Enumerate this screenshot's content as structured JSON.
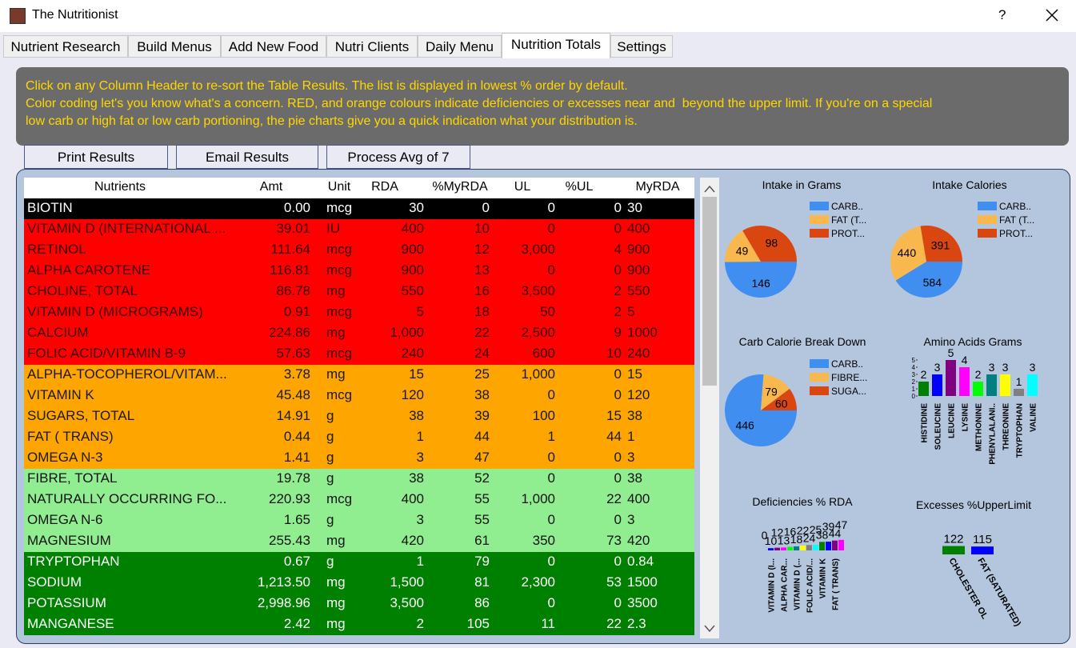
{
  "window": {
    "title": "The Nutritionist",
    "help": "?"
  },
  "tabs": {
    "items": [
      "Nutrient Research",
      "Build Menus",
      "Add New Food",
      "Nutri Clients",
      "Daily Menu",
      "Nutrition Totals",
      "Settings"
    ],
    "active": 5
  },
  "info": [
    "Click on any Column Header to re-sort the Table Results. The list is displayed in lowest % order by default.",
    "Color coding let's you know what's a concern. RED, and orange colours indicate deficiencies or excesses near and  beyond the upper limit. If you're on a special",
    "low carb or high fat or low carb portioning, the pie charts give you a quick indication what your distribution is."
  ],
  "buttons": [
    "Print Results",
    "Email Results",
    "Process Avg of 7"
  ],
  "table": {
    "columns": [
      "Nutrients",
      "Amt",
      "Unit",
      "RDA",
      "%MyRDA",
      "UL",
      "%UL",
      "MyRDA"
    ],
    "rows": [
      {
        "bg": "#000000",
        "fg": "#ffffff",
        "cells": [
          "BIOTIN",
          "0.00",
          "mcg",
          "30",
          "0",
          "0",
          "0",
          "30"
        ]
      },
      {
        "bg": "#ff0000",
        "fg": "#3a0000",
        "cells": [
          "VITAMIN D (INTERNATIONAL ...",
          "39.01",
          "IU",
          "400",
          "10",
          "0",
          "0",
          "400"
        ]
      },
      {
        "bg": "#ff0000",
        "fg": "#3a0000",
        "cells": [
          "RETINOL",
          "111.64",
          "mcg",
          "900",
          "12",
          "3,000",
          "4",
          "900"
        ]
      },
      {
        "bg": "#ff0000",
        "fg": "#3a0000",
        "cells": [
          "ALPHA CAROTENE",
          "116.81",
          "mcg",
          "900",
          "13",
          "0",
          "0",
          "900"
        ]
      },
      {
        "bg": "#ff0000",
        "fg": "#3a0000",
        "cells": [
          "CHOLINE, TOTAL",
          "86.78",
          "mg",
          "550",
          "16",
          "3,500",
          "2",
          "550"
        ]
      },
      {
        "bg": "#ff0000",
        "fg": "#3a0000",
        "cells": [
          "VITAMIN D (MICROGRAMS)",
          "0.91",
          "mcg",
          "5",
          "18",
          "50",
          "2",
          "5"
        ]
      },
      {
        "bg": "#ff0000",
        "fg": "#3a0000",
        "cells": [
          "CALCIUM",
          "224.86",
          "mg",
          "1,000",
          "22",
          "2,500",
          "9",
          "1000"
        ]
      },
      {
        "bg": "#ff0000",
        "fg": "#3a0000",
        "cells": [
          "FOLIC ACID/VITAMIN B-9",
          "57.63",
          "mcg",
          "240",
          "24",
          "600",
          "10",
          "240"
        ]
      },
      {
        "bg": "#ffa500",
        "fg": "#1a1a1a",
        "cells": [
          "ALPHA-TOCOPHEROL/VITAM...",
          "3.78",
          "mg",
          "15",
          "25",
          "1,000",
          "0",
          "15"
        ]
      },
      {
        "bg": "#ffa500",
        "fg": "#1a1a1a",
        "cells": [
          "VITAMIN K",
          "45.48",
          "mcg",
          "120",
          "38",
          "0",
          "0",
          "120"
        ]
      },
      {
        "bg": "#ffa500",
        "fg": "#1a1a1a",
        "cells": [
          "SUGARS, TOTAL",
          "14.91",
          "g",
          "38",
          "39",
          "100",
          "15",
          "38"
        ]
      },
      {
        "bg": "#ffa500",
        "fg": "#1a1a1a",
        "cells": [
          "FAT ( TRANS)",
          "0.44",
          "g",
          "1",
          "44",
          "1",
          "44",
          "1"
        ]
      },
      {
        "bg": "#ffa500",
        "fg": "#1a1a1a",
        "cells": [
          "OMEGA  N-3",
          "1.41",
          "g",
          "3",
          "47",
          "0",
          "0",
          "3"
        ]
      },
      {
        "bg": "#90ee90",
        "fg": "#111111",
        "cells": [
          "FIBRE, TOTAL",
          "19.78",
          "g",
          "38",
          "52",
          "0",
          "0",
          "38"
        ]
      },
      {
        "bg": "#90ee90",
        "fg": "#111111",
        "cells": [
          "NATURALLY OCCURRING FO...",
          "220.93",
          "mcg",
          "400",
          "55",
          "1,000",
          "22",
          "400"
        ]
      },
      {
        "bg": "#90ee90",
        "fg": "#111111",
        "cells": [
          "OMEGA  N-6",
          "1.65",
          "g",
          "3",
          "55",
          "0",
          "0",
          "3"
        ]
      },
      {
        "bg": "#90ee90",
        "fg": "#111111",
        "cells": [
          "MAGNESIUM",
          "255.43",
          "mg",
          "420",
          "61",
          "350",
          "73",
          "420"
        ]
      },
      {
        "bg": "#008000",
        "fg": "#ffffff",
        "cells": [
          "TRYPTOPHAN",
          "0.67",
          "g",
          "1",
          "79",
          "0",
          "0",
          "0.84"
        ]
      },
      {
        "bg": "#008000",
        "fg": "#ffffff",
        "cells": [
          "SODIUM",
          "1,213.50",
          "mg",
          "1,500",
          "81",
          "2,300",
          "53",
          "1500"
        ]
      },
      {
        "bg": "#008000",
        "fg": "#ffffff",
        "cells": [
          "POTASSIUM",
          "2,998.96",
          "mg",
          "3,500",
          "86",
          "0",
          "0",
          "3500"
        ]
      },
      {
        "bg": "#008000",
        "fg": "#ffffff",
        "cells": [
          "MANGANESE",
          "2.42",
          "mg",
          "2",
          "105",
          "11",
          "22",
          "2.3"
        ]
      }
    ]
  },
  "charts": [
    {
      "type": "pie",
      "title": "Intake in Grams",
      "categories": [
        "CARB..",
        "FAT (T...",
        "PROT..."
      ],
      "values": [
        146,
        49,
        98
      ],
      "colors": [
        "#3f8ef0",
        "#f9b84e",
        "#d9460f"
      ]
    },
    {
      "type": "pie",
      "title": "Intake Calories",
      "categories": [
        "CARB..",
        "FAT (T...",
        "PROT..."
      ],
      "values": [
        584,
        440,
        391
      ],
      "colors": [
        "#3f8ef0",
        "#f9b84e",
        "#d9460f"
      ]
    },
    {
      "type": "pie",
      "title": "Carb Calorie Break Down",
      "categories": [
        "CARB..",
        "FIBRE...",
        "SUGA..."
      ],
      "values": [
        446,
        79,
        60
      ],
      "colors": [
        "#3f8ef0",
        "#f9b84e",
        "#d9460f"
      ]
    },
    {
      "type": "bar",
      "title": "Amino Acids Grams",
      "categories": [
        "HISTIDINE",
        "SOLEUCINE",
        "LEUCINE",
        "LYSINE",
        "METHONINE",
        "PHENYLALANI..",
        "THREONINE",
        "TRYPTOPHAN",
        "VALINE"
      ],
      "values": [
        2,
        3,
        5,
        4,
        2,
        3,
        3,
        1,
        3
      ],
      "colors": [
        "#008000",
        "#0000ff",
        "#800080",
        "#ff00ff",
        "#00ff00",
        "#008080",
        "#ffff00",
        "#808080",
        "#00ffff"
      ],
      "ylim": [
        0,
        5
      ],
      "yticks": [
        0,
        1,
        2,
        3,
        4,
        5
      ]
    },
    {
      "type": "bar",
      "title": "Deficiencies % RDA",
      "categories": [
        null,
        "VITAMIN D (I...",
        null,
        "ALPHA CAR...",
        null,
        "VITAMIN D (...",
        null,
        "FOLIC ACID/...",
        null,
        "VITAMIN K",
        null,
        "FAT ( TRANS)",
        null
      ],
      "values": [
        0,
        10,
        12,
        13,
        16,
        18,
        22,
        24,
        25,
        38,
        39,
        44,
        47
      ],
      "colors": [
        "#000000",
        "#0000ff",
        "#800080",
        "#ff00ff",
        "#00ff00",
        "#008080",
        "#ffff00",
        "#808080",
        "#00ffff",
        "#008000",
        "#0000ff",
        "#800080",
        "#ff00ff"
      ],
      "ylim": [
        0,
        50
      ]
    },
    {
      "type": "bar",
      "title": "Excesses %UpperLimit",
      "categories": [
        "CHOLESTER OL",
        "FAT (SATURATED)"
      ],
      "values": [
        122,
        115
      ],
      "colors": [
        "#008000",
        "#0000ff"
      ],
      "ylim": [
        0,
        140
      ]
    }
  ]
}
